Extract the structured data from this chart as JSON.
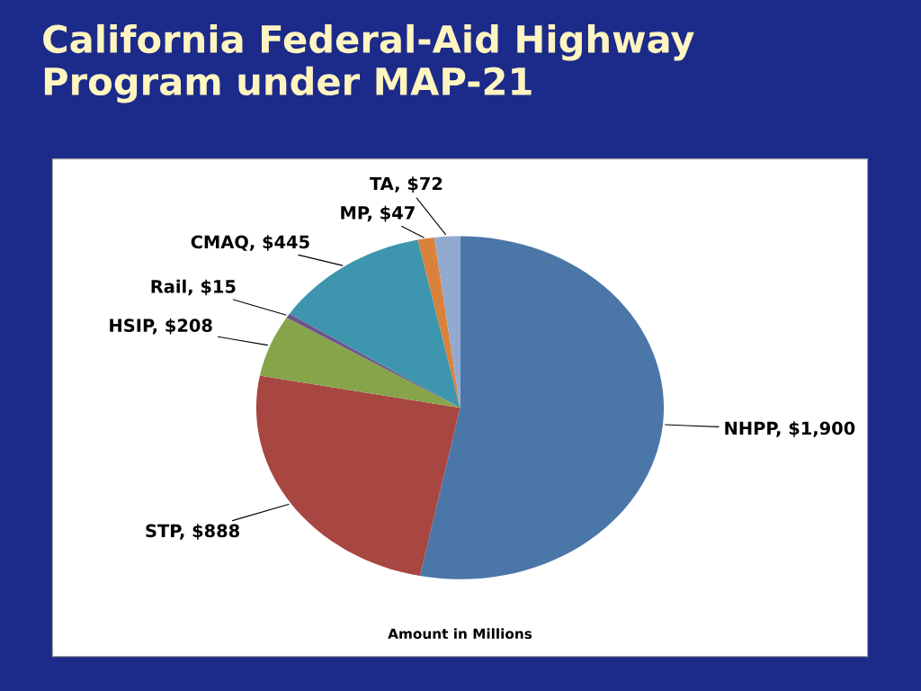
{
  "chart_data": {
    "type": "pie",
    "title": "California Federal-Aid Highway\nProgram under MAP-21",
    "categories": [
      "NHPP",
      "STP",
      "HSIP",
      "Rail",
      "CMAQ",
      "MP",
      "TA"
    ],
    "values": [
      1900,
      888,
      208,
      15,
      445,
      47,
      72
    ],
    "value_labels": [
      "$1,900",
      "$888",
      "$208",
      "$15",
      "$445",
      "$47",
      "$72"
    ],
    "colors": [
      "#4a76a8",
      "#a84642",
      "#86a44a",
      "#6e548d",
      "#3d96ae",
      "#d9823b",
      "#93a9cf"
    ],
    "annotations": [
      "Amount in Millions"
    ],
    "legend": false
  }
}
